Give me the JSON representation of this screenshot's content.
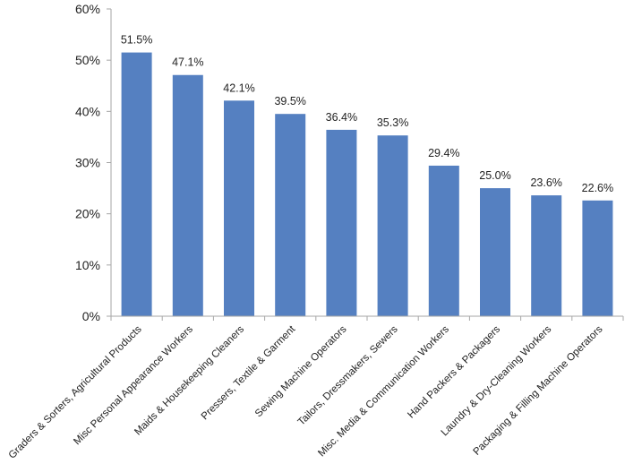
{
  "chart_data": {
    "type": "bar",
    "title": "",
    "xlabel": "",
    "ylabel": "",
    "categories": [
      "Graders & Sorters, Agricultural Products",
      "Misc Personal Appearance Workers",
      "Maids & Housekeeping Cleaners",
      "Pressers, Textile & Garment",
      "Sewing Machine Operators",
      "Tailors, Dressmakers, Sewers",
      "Misc. Media & Communication Workers",
      "Hand Packers & Packagers",
      "Laundry & Dry-Cleaning Workers",
      "Packaging & Filling Machine Operators"
    ],
    "values": [
      51.5,
      47.1,
      42.1,
      39.5,
      36.4,
      35.3,
      29.4,
      25.0,
      23.6,
      22.6
    ],
    "data_labels": [
      "51.5%",
      "47.1%",
      "42.1%",
      "39.5%",
      "36.4%",
      "35.3%",
      "29.4%",
      "25.0%",
      "23.6%",
      "22.6%"
    ],
    "ylim": [
      0,
      60
    ],
    "yticks": [
      0,
      10,
      20,
      30,
      40,
      50,
      60
    ],
    "ytick_labels": [
      "0%",
      "10%",
      "20%",
      "30%",
      "40%",
      "50%",
      "60%"
    ],
    "grid": false,
    "legend": "none",
    "bar_color": "#5580c1",
    "axis_color": "#a6a6a6"
  }
}
